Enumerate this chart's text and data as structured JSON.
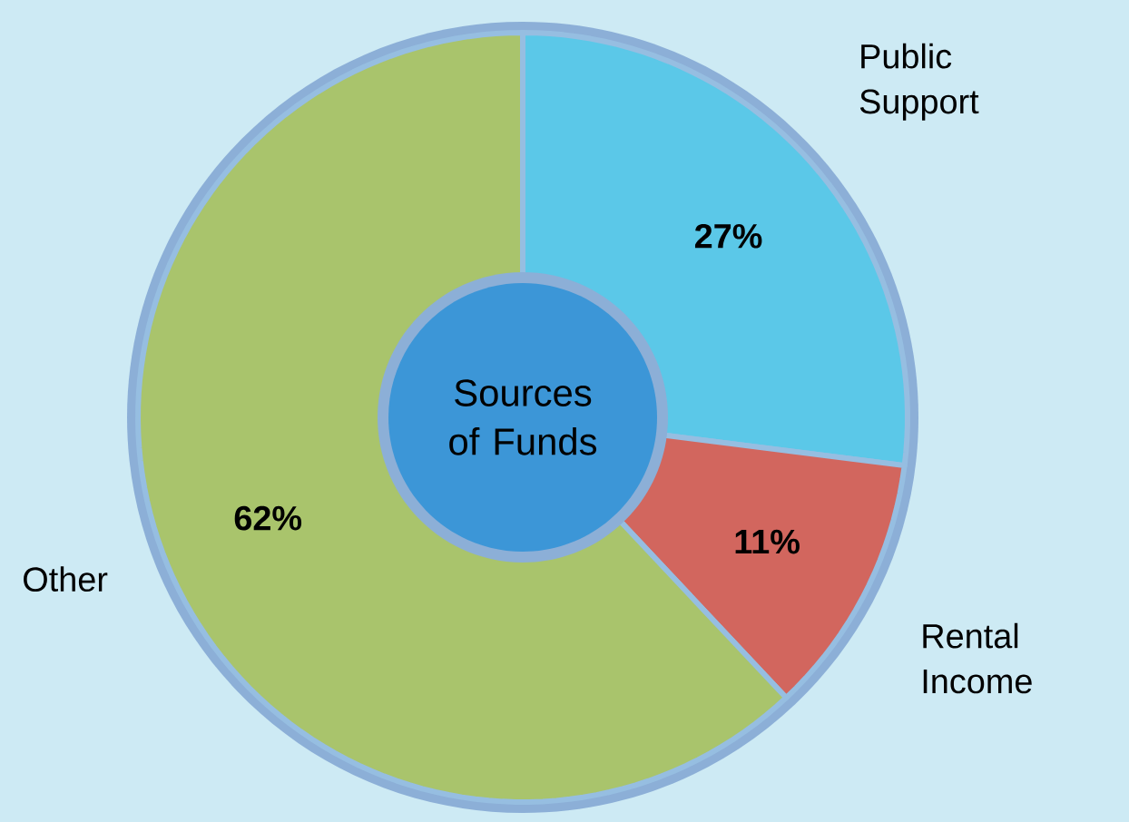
{
  "chart_data": {
    "type": "donut",
    "title": "Sources of Funds",
    "categories": [
      "Public Support",
      "Rental Income",
      "Other"
    ],
    "values": [
      27,
      11,
      62
    ],
    "value_labels": [
      "27%",
      "11%",
      "62%"
    ],
    "colors": [
      "#5bc8e8",
      "#d2665e",
      "#a9c46c"
    ]
  }
}
